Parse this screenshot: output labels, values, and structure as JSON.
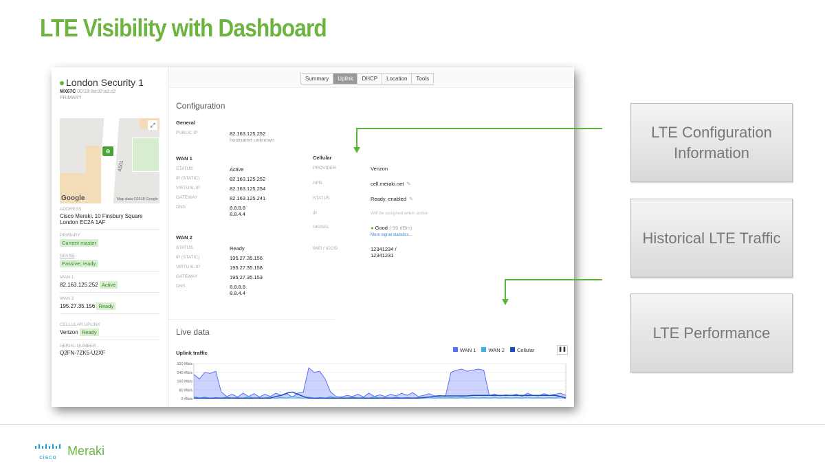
{
  "slide": {
    "title": "LTE Visibility with Dashboard"
  },
  "sidebar": {
    "device_name": "London Security 1",
    "model": "MX67C",
    "mac": "00:18:0a:02:a2:c2",
    "role": "PRIMARY",
    "map": {
      "road_label": "A501",
      "google": "Google",
      "attribution": "Map data ©2018 Google"
    },
    "address_label": "ADDRESS",
    "address_line1": "Cisco Meraki, 10 Finsbury Square",
    "address_line2": "London EC2A 1AF",
    "primary_label": "PRIMARY",
    "primary_badge": "Current master",
    "spare_label": "SPARE",
    "spare_badge": "Passive; ready",
    "wan1_label": "WAN 1",
    "wan1_ip": "82.163.125.252",
    "wan1_badge": "Active",
    "wan2_label": "WAN 2",
    "wan2_ip": "195.27.35.156",
    "wan2_badge": "Ready",
    "cell_label": "CELLULAR UPLINK",
    "cell_provider": "Verizon",
    "cell_badge": "Ready",
    "serial_label": "SERIAL NUMBER",
    "serial": "Q2FN-7ZK5-U2XF"
  },
  "tabs": [
    {
      "label": "Summary"
    },
    {
      "label": "Uplink",
      "active": true
    },
    {
      "label": "DHCP"
    },
    {
      "label": "Location"
    },
    {
      "label": "Tools"
    }
  ],
  "config": {
    "heading": "Configuration",
    "general": {
      "title": "General",
      "public_ip_label": "PUBLIC IP",
      "public_ip": "82.163.125.252",
      "hostname": "hostname unknown"
    },
    "wan1": {
      "title": "WAN 1",
      "rows": [
        {
          "k": "STATUS",
          "v": "Active"
        },
        {
          "k": "IP (STATIC)",
          "v": "82.163.125.252"
        },
        {
          "k": "VIRTUAL IP",
          "v": "82.163.125.254"
        },
        {
          "k": "GATEWAY",
          "v": "82.163.125.241"
        },
        {
          "k": "DNS",
          "v": "8.8.8.8",
          "v2": "8.8.4.4"
        }
      ]
    },
    "wan2": {
      "title": "WAN 2",
      "rows": [
        {
          "k": "STATUS",
          "v": "Ready"
        },
        {
          "k": "IP (STATIC)",
          "v": "195.27.35.156"
        },
        {
          "k": "VIRTUAL IP",
          "v": "195.27.35.158"
        },
        {
          "k": "GATEWAY",
          "v": "195.27.35.153"
        },
        {
          "k": "DNS",
          "v": "8.8.8.8",
          "v2": "8.8.4.4"
        }
      ]
    },
    "cellular": {
      "title": "Cellular",
      "provider_label": "PROVIDER",
      "provider": "Verizon",
      "apn_label": "APN",
      "apn": "cell.meraki.net",
      "status_label": "STATUS",
      "status": "Ready, enabled",
      "ip_label": "IP",
      "ip": "Will be assigned when active",
      "signal_label": "SIGNAL",
      "signal": "Good",
      "signal_dbm": "(-90 dBm)",
      "signal_link": "More signal statistics...",
      "imei_label": "IMEI / ICCID",
      "imei": "12341234 /",
      "iccid": "12341231"
    }
  },
  "live": {
    "heading": "Live data",
    "chart_title": "Uplink traffic"
  },
  "chart_data": {
    "type": "area",
    "title": "Uplink traffic",
    "ylabel": "",
    "ylim": [
      0,
      320
    ],
    "yticks": [
      "320 Mb/s",
      "240 Mb/s",
      "160 Mb/s",
      "80 Mb/s",
      "0 Mb/s"
    ],
    "legend_position": "top-right",
    "series": [
      {
        "name": "WAN 1",
        "color": "#5b6cf5",
        "values": [
          220,
          180,
          240,
          230,
          250,
          60,
          20,
          40,
          15,
          50,
          20,
          45,
          15,
          40,
          20,
          50,
          30,
          45,
          15,
          50,
          60,
          280,
          240,
          250,
          180,
          60,
          20,
          15,
          30,
          20,
          40,
          15,
          50,
          20,
          35,
          20,
          40,
          25,
          50,
          30,
          55,
          20,
          30,
          45,
          25,
          30,
          20,
          240,
          260,
          270,
          250,
          260,
          270,
          260,
          30,
          40,
          25,
          35,
          30,
          40,
          20,
          50,
          30,
          25,
          45,
          30,
          40,
          50,
          30
        ]
      },
      {
        "name": "WAN 2",
        "color": "#3fb0e8",
        "values": [
          20,
          5,
          15,
          5,
          10,
          5,
          15,
          5,
          10,
          5,
          20,
          5,
          10,
          5,
          15,
          5,
          10,
          5,
          20,
          10,
          5,
          15,
          5,
          10,
          5,
          20,
          5,
          10,
          5,
          15,
          5,
          10,
          5,
          20,
          5,
          10,
          5,
          15,
          5,
          10,
          5,
          10,
          5,
          15,
          5,
          10,
          5,
          10,
          5,
          15,
          5,
          10,
          5,
          10,
          5,
          15,
          5,
          10,
          5,
          10,
          5,
          15,
          5,
          10,
          5,
          10,
          5,
          20,
          10
        ]
      },
      {
        "name": "Cellular",
        "color": "#1f4fb5",
        "values": [
          5,
          5,
          5,
          5,
          5,
          5,
          5,
          5,
          5,
          5,
          5,
          5,
          5,
          5,
          5,
          20,
          30,
          50,
          60,
          40,
          20,
          5,
          5,
          5,
          5,
          5,
          5,
          5,
          5,
          5,
          5,
          5,
          5,
          5,
          5,
          5,
          5,
          5,
          5,
          5,
          5,
          5,
          10,
          15,
          20,
          25,
          25,
          25,
          25,
          25,
          25,
          30,
          30,
          30,
          30,
          30,
          30,
          30,
          30,
          30,
          30,
          30,
          30,
          30,
          30,
          30,
          30,
          20,
          5
        ]
      }
    ]
  },
  "callouts": [
    "LTE Configuration Information",
    "Historical LTE Traffic",
    "LTE Performance"
  ],
  "footer": {
    "cisco": "cisco",
    "brand": "Meraki"
  },
  "colors": {
    "accent": "#6cb33f"
  }
}
